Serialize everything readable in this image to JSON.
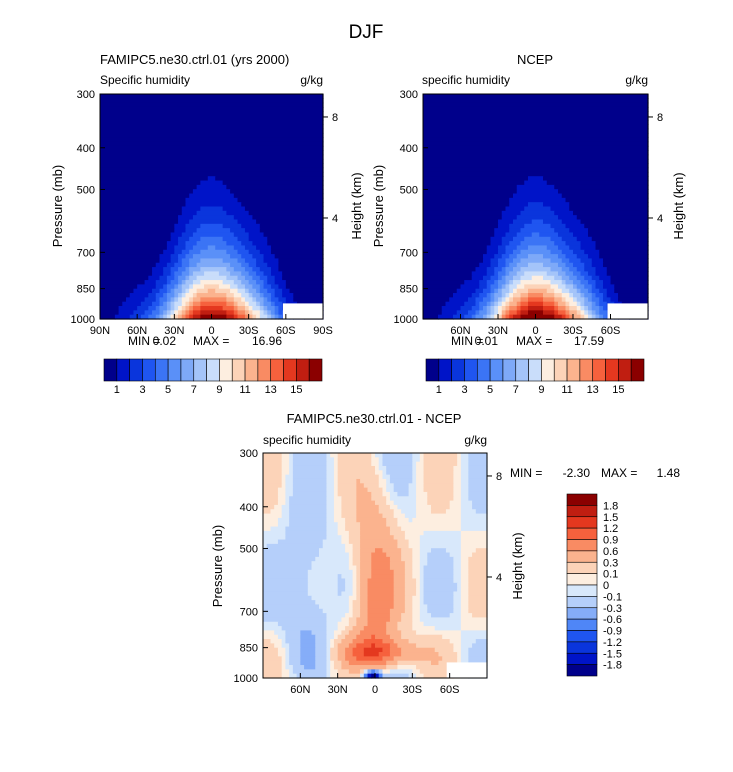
{
  "figure": {
    "title": "DJF"
  },
  "palette_full": [
    "#00008b",
    "#0014c8",
    "#0a35dc",
    "#1f55f0",
    "#3b74f5",
    "#5a90f8",
    "#7ea9f8",
    "#a4c4f9",
    "#c9ddfa",
    "#fdeee0",
    "#fcd3b8",
    "#fbb38e",
    "#f98b63",
    "#f6613d",
    "#e4381f",
    "#c01e11",
    "#8b0000"
  ],
  "palette_diff": [
    "#00008b",
    "#0014c8",
    "#0a35dc",
    "#1f55f0",
    "#4f86f7",
    "#85adf8",
    "#b5cffa",
    "#d8e8fb",
    "#fdeee0",
    "#fcd3b8",
    "#fbb38e",
    "#f98b63",
    "#f6613d",
    "#e4381f",
    "#c01e11",
    "#8b0000"
  ],
  "chart_data": [
    {
      "type": "heatmap",
      "panel": "model",
      "title": "FAMIPC5.ne30.ctrl.01 (yrs 2000)",
      "subtitle_left": "Specific humidity",
      "subtitle_right": "g/kg",
      "ylabel": "Pressure (mb)",
      "ylabel_right": "Height (km)",
      "yticks": [
        "300",
        "400",
        "500",
        "700",
        "850",
        "1000"
      ],
      "ytick_values": [
        300,
        400,
        500,
        700,
        850,
        1000
      ],
      "height_ticks": [
        "8",
        "4"
      ],
      "height_tick_values": [
        8,
        4
      ],
      "xticks": [
        "90N",
        "60N",
        "30N",
        "0",
        "30S",
        "60S",
        "90S"
      ],
      "xtick_values": [
        90,
        60,
        30,
        0,
        -30,
        -60,
        -90
      ],
      "xlim": [
        90,
        -90
      ],
      "ylim": [
        1000,
        300
      ],
      "stats": {
        "min_label": "MIN =",
        "min": "0.02",
        "max_label": "MAX =",
        "max": "16.96"
      },
      "colorbar_labels": [
        "1",
        "3",
        "5",
        "7",
        "9",
        "11",
        "13",
        "15"
      ],
      "colorbar_levels": [
        1,
        3,
        5,
        7,
        9,
        11,
        13,
        15
      ],
      "field": {
        "peak": 16.96,
        "peak_lat": -3,
        "floor": 0.02
      }
    },
    {
      "type": "heatmap",
      "panel": "obs",
      "title": "NCEP",
      "subtitle_left": "specific humidity",
      "subtitle_right": "g/kg",
      "ylabel": "Pressure (mb)",
      "ylabel_right": "Height (km)",
      "yticks": [
        "300",
        "400",
        "500",
        "700",
        "850",
        "1000"
      ],
      "ytick_values": [
        300,
        400,
        500,
        700,
        850,
        1000
      ],
      "height_ticks": [
        "8",
        "4"
      ],
      "height_tick_values": [
        8,
        4
      ],
      "xticks": [
        "60N",
        "30N",
        "0",
        "30S",
        "60S"
      ],
      "xtick_values": [
        60,
        30,
        0,
        -30,
        -60
      ],
      "xlim": [
        90,
        -90
      ],
      "ylim": [
        1000,
        300
      ],
      "stats": {
        "min_label": "MIN =",
        "min": "0.01",
        "max_label": "MAX =",
        "max": "17.59"
      },
      "colorbar_labels": [
        "1",
        "3",
        "5",
        "7",
        "9",
        "11",
        "13",
        "15"
      ],
      "colorbar_levels": [
        1,
        3,
        5,
        7,
        9,
        11,
        13,
        15
      ],
      "field": {
        "peak": 17.59,
        "peak_lat": -3,
        "floor": 0.01
      }
    },
    {
      "type": "heatmap",
      "panel": "difference",
      "title": "FAMIPC5.ne30.ctrl.01 - NCEP",
      "subtitle_left": "specific humidity",
      "subtitle_right": "g/kg",
      "ylabel": "Pressure (mb)",
      "ylabel_right": "Height (km)",
      "yticks": [
        "300",
        "400",
        "500",
        "700",
        "850",
        "1000"
      ],
      "ytick_values": [
        300,
        400,
        500,
        700,
        850,
        1000
      ],
      "height_ticks": [
        "8",
        "4"
      ],
      "height_tick_values": [
        8,
        4
      ],
      "xticks": [
        "60N",
        "30N",
        "0",
        "30S",
        "60S"
      ],
      "xtick_values": [
        60,
        30,
        0,
        -30,
        -60
      ],
      "xlim": [
        90,
        -90
      ],
      "ylim": [
        1000,
        300
      ],
      "stats": {
        "min_label": "MIN =",
        "min": "-2.30",
        "max_label": "MAX =",
        "max": "1.48"
      },
      "colorbar_labels": [
        "1.8",
        "1.5",
        "1.2",
        "0.9",
        "0.6",
        "0.3",
        "0.1",
        "0",
        "-0.1",
        "-0.3",
        "-0.6",
        "-0.9",
        "-1.2",
        "-1.5",
        "-1.8"
      ],
      "colorbar_levels": [
        1.8,
        1.5,
        1.2,
        0.9,
        0.6,
        0.3,
        0.1,
        0,
        -0.1,
        -0.3,
        -0.6,
        -0.9,
        -1.2,
        -1.5,
        -1.8
      ],
      "field": {
        "min": -2.3,
        "max": 1.48
      }
    }
  ]
}
